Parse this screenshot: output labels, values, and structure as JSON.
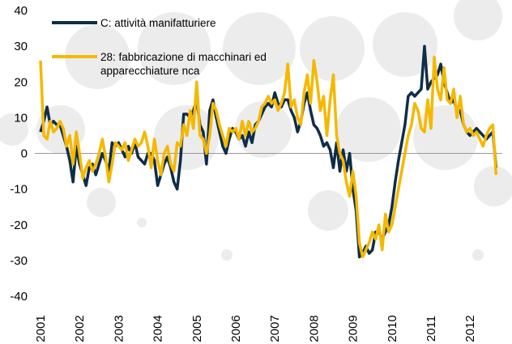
{
  "chart_data": {
    "type": "line",
    "categories": [
      "2001",
      null,
      null,
      null,
      null,
      null,
      null,
      null,
      null,
      null,
      null,
      null,
      "2002",
      null,
      null,
      null,
      null,
      null,
      null,
      null,
      null,
      null,
      null,
      null,
      "2003",
      null,
      null,
      null,
      null,
      null,
      null,
      null,
      null,
      null,
      null,
      null,
      "2004",
      null,
      null,
      null,
      null,
      null,
      null,
      null,
      null,
      null,
      null,
      null,
      "2005",
      null,
      null,
      null,
      null,
      null,
      null,
      null,
      null,
      null,
      null,
      null,
      "2006",
      null,
      null,
      null,
      null,
      null,
      null,
      null,
      null,
      null,
      null,
      null,
      "2007",
      null,
      null,
      null,
      null,
      null,
      null,
      null,
      null,
      null,
      null,
      null,
      "2008",
      null,
      null,
      null,
      null,
      null,
      null,
      null,
      null,
      null,
      null,
      null,
      "2009",
      null,
      null,
      null,
      null,
      null,
      null,
      null,
      null,
      null,
      null,
      null,
      "2010",
      null,
      null,
      null,
      null,
      null,
      null,
      null,
      null,
      null,
      null,
      null,
      "2011",
      null,
      null,
      null,
      null,
      null,
      null,
      null,
      null,
      null,
      null,
      null,
      "2012",
      null,
      null,
      null,
      null,
      null,
      null,
      null,
      null
    ],
    "series": [
      {
        "name": "C: attività manifatturiere",
        "color": "#0f2d48",
        "values": [
          6,
          9,
          13,
          8,
          9,
          8,
          8,
          5,
          2,
          -2,
          -8,
          2,
          -3,
          -6,
          -9,
          -4,
          -3,
          -6,
          -3,
          0,
          -2,
          -5,
          3,
          2,
          3,
          1,
          -1,
          2,
          0,
          3,
          -1,
          -2,
          -3,
          0,
          0,
          -2,
          -9,
          -6,
          -3,
          -1,
          -4,
          -8,
          -10,
          -2,
          11,
          11,
          10,
          12,
          15,
          8,
          6,
          -3,
          12,
          15,
          10,
          6,
          2,
          0,
          4,
          7,
          6,
          4,
          5,
          2,
          6,
          3,
          8,
          9,
          11,
          13,
          14,
          13,
          17,
          14,
          13,
          15,
          15,
          12,
          10,
          6,
          9,
          14,
          17,
          12,
          8,
          7,
          5,
          2,
          3,
          1,
          -4,
          3,
          -5,
          1,
          -5,
          0,
          -10,
          -16,
          -29,
          -28,
          -26,
          -28,
          -27,
          -22,
          -22,
          -24,
          -22,
          -20,
          -15,
          -8,
          -2,
          3,
          8,
          16,
          17,
          16,
          17,
          18,
          30,
          18,
          20,
          21,
          22,
          25,
          20,
          17,
          14,
          15,
          12,
          12,
          8,
          6,
          5,
          6,
          7,
          6,
          5,
          4,
          5,
          6,
          -4
        ]
      },
      {
        "name": "28: fabbricazione di macchinari ed apparecchiature nca",
        "color": "#f5b800",
        "values": [
          26,
          5,
          4,
          9,
          6,
          7,
          9,
          7,
          2,
          5,
          -3,
          6,
          0,
          -7,
          -4,
          -2,
          -5,
          -3,
          0,
          4,
          -1,
          -8,
          -3,
          3,
          2,
          1,
          3,
          -2,
          1,
          4,
          2,
          3,
          6,
          2,
          -4,
          4,
          -2,
          -6,
          0,
          2,
          -3,
          -5,
          3,
          2,
          8,
          5,
          12,
          7,
          20,
          5,
          4,
          0,
          5,
          14,
          12,
          8,
          5,
          2,
          7,
          6,
          7,
          4,
          9,
          5,
          9,
          6,
          7,
          9,
          13,
          14,
          16,
          14,
          15,
          12,
          14,
          17,
          25,
          13,
          15,
          10,
          8,
          17,
          22,
          14,
          26,
          20,
          12,
          16,
          5,
          15,
          22,
          5,
          0,
          -2,
          -8,
          -12,
          -5,
          -12,
          -25,
          -29,
          -27,
          -25,
          -22,
          -24,
          -20,
          -27,
          -17,
          -22,
          -20,
          -15,
          -10,
          -5,
          0,
          5,
          8,
          14,
          12,
          7,
          6,
          15,
          7,
          27,
          18,
          15,
          24,
          15,
          14,
          18,
          10,
          16,
          8,
          6,
          7,
          5,
          6,
          4,
          2,
          5,
          7,
          8,
          -6
        ]
      }
    ],
    "ylim": [
      -40,
      40
    ],
    "yticks": [
      -40,
      -30,
      -20,
      -10,
      0,
      10,
      20,
      30,
      40
    ]
  }
}
